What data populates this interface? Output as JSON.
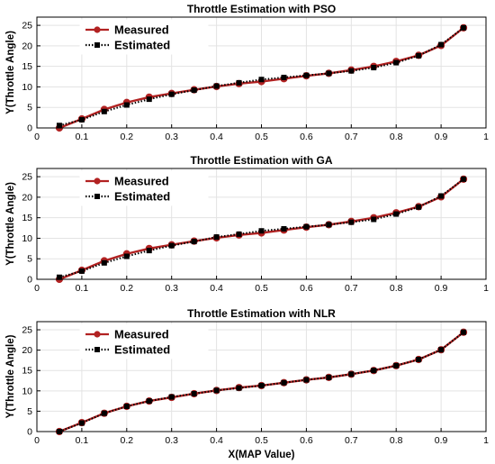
{
  "chart_data": [
    {
      "type": "line",
      "title": "Throttle Estimation with PSO",
      "xlabel": "",
      "ylabel": "Y(Throttle Angle)",
      "xlim": [
        0,
        1
      ],
      "ylim": [
        0,
        27
      ],
      "x_ticks": [
        "0",
        "0.1",
        "0.2",
        "0.3",
        "0.4",
        "0.5",
        "0.6",
        "0.7",
        "0.8",
        "0.9",
        "1"
      ],
      "y_ticks": [
        "0",
        "5",
        "10",
        "15",
        "20",
        "25"
      ],
      "grid": true,
      "legend": "top-left",
      "x": [
        0.05,
        0.1,
        0.15,
        0.2,
        0.25,
        0.3,
        0.35,
        0.4,
        0.45,
        0.5,
        0.55,
        0.6,
        0.65,
        0.7,
        0.75,
        0.8,
        0.85,
        0.9,
        0.95
      ],
      "series": [
        {
          "name": "Measured",
          "color": "#b22222",
          "marker": "circle",
          "line": "solid",
          "values": [
            0,
            2.2,
            4.5,
            6.2,
            7.5,
            8.4,
            9.3,
            10.1,
            10.8,
            11.3,
            12.0,
            12.7,
            13.3,
            14.1,
            15.0,
            16.2,
            17.7,
            20.1,
            24.4
          ]
        },
        {
          "name": "Estimated",
          "color": "#000000",
          "marker": "square",
          "line": "dotted",
          "values": [
            0.6,
            2.0,
            4.0,
            5.6,
            7.0,
            8.2,
            9.2,
            10.2,
            11.0,
            11.8,
            12.3,
            12.8,
            13.3,
            13.9,
            14.7,
            15.9,
            17.6,
            20.3,
            24.4
          ]
        }
      ]
    },
    {
      "type": "line",
      "title": "Throttle Estimation with GA",
      "xlabel": "",
      "ylabel": "Y(Throttle Angle)",
      "xlim": [
        0,
        1
      ],
      "ylim": [
        0,
        27
      ],
      "x_ticks": [
        "0",
        "0.1",
        "0.2",
        "0.3",
        "0.4",
        "0.5",
        "0.6",
        "0.7",
        "0.8",
        "0.9",
        "1"
      ],
      "y_ticks": [
        "0",
        "5",
        "10",
        "15",
        "20",
        "25"
      ],
      "grid": true,
      "legend": "top-left",
      "x": [
        0.05,
        0.1,
        0.15,
        0.2,
        0.25,
        0.3,
        0.35,
        0.4,
        0.45,
        0.5,
        0.55,
        0.6,
        0.65,
        0.7,
        0.75,
        0.8,
        0.85,
        0.9,
        0.95
      ],
      "series": [
        {
          "name": "Measured",
          "color": "#b22222",
          "marker": "circle",
          "line": "solid",
          "values": [
            0,
            2.2,
            4.5,
            6.2,
            7.5,
            8.4,
            9.3,
            10.1,
            10.8,
            11.3,
            12.0,
            12.7,
            13.3,
            14.1,
            15.0,
            16.2,
            17.7,
            20.1,
            24.4
          ]
        },
        {
          "name": "Estimated",
          "color": "#000000",
          "marker": "square",
          "line": "dotted",
          "values": [
            0.5,
            2.0,
            4.0,
            5.6,
            7.0,
            8.2,
            9.2,
            10.3,
            11.0,
            11.8,
            12.3,
            12.8,
            13.3,
            13.9,
            14.6,
            15.9,
            17.6,
            20.3,
            24.4
          ]
        }
      ]
    },
    {
      "type": "line",
      "title": "Throttle Estimation with NLR",
      "xlabel": "X(MAP Value)",
      "ylabel": "Y(Throttle Angle)",
      "xlim": [
        0,
        1
      ],
      "ylim": [
        0,
        27
      ],
      "x_ticks": [
        "0",
        "0.1",
        "0.2",
        "0.3",
        "0.4",
        "0.5",
        "0.6",
        "0.7",
        "0.8",
        "0.9",
        "1"
      ],
      "y_ticks": [
        "0",
        "5",
        "10",
        "15",
        "20",
        "25"
      ],
      "grid": true,
      "legend": "top-left",
      "x": [
        0.05,
        0.1,
        0.15,
        0.2,
        0.25,
        0.3,
        0.35,
        0.4,
        0.45,
        0.5,
        0.55,
        0.6,
        0.65,
        0.7,
        0.75,
        0.8,
        0.85,
        0.9,
        0.95
      ],
      "series": [
        {
          "name": "Measured",
          "color": "#b22222",
          "marker": "circle",
          "line": "solid",
          "values": [
            0,
            2.2,
            4.5,
            6.2,
            7.5,
            8.4,
            9.3,
            10.1,
            10.8,
            11.3,
            12.0,
            12.7,
            13.3,
            14.1,
            15.0,
            16.2,
            17.7,
            20.1,
            24.4
          ]
        },
        {
          "name": "Estimated",
          "color": "#000000",
          "marker": "square",
          "line": "dotted",
          "values": [
            0.0,
            2.1,
            4.5,
            6.2,
            7.5,
            8.5,
            9.3,
            10.1,
            10.7,
            11.3,
            12.0,
            12.7,
            13.3,
            14.1,
            15.0,
            16.2,
            17.7,
            20.1,
            24.4
          ]
        }
      ]
    }
  ]
}
